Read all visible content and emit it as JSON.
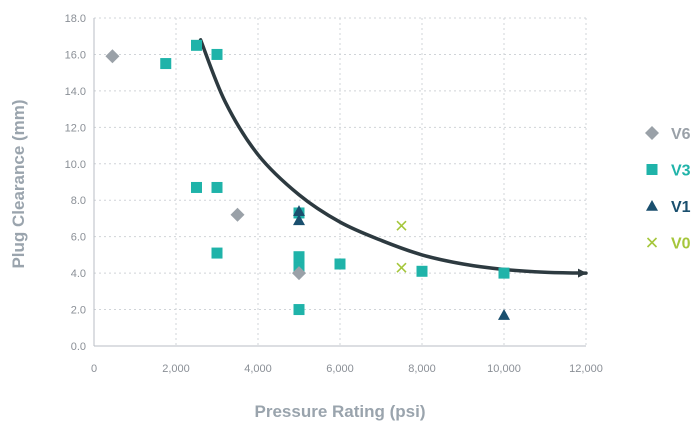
{
  "chart_data": {
    "type": "scatter",
    "xlabel": "Pressure Rating (psi)",
    "ylabel": "Plug Clearance (mm)",
    "xlim": [
      0,
      12000
    ],
    "ylim": [
      0,
      18
    ],
    "x_ticks": [
      {
        "value": 0,
        "label": "0"
      },
      {
        "value": 2000,
        "label": "2,000"
      },
      {
        "value": 4000,
        "label": "4,000"
      },
      {
        "value": 6000,
        "label": "6,000"
      },
      {
        "value": 8000,
        "label": "8,000"
      },
      {
        "value": 10000,
        "label": "10,000"
      },
      {
        "value": 12000,
        "label": "12,000"
      }
    ],
    "y_ticks": [
      {
        "value": 0,
        "label": "0.0"
      },
      {
        "value": 2,
        "label": "2.0"
      },
      {
        "value": 4,
        "label": "4.0"
      },
      {
        "value": 6,
        "label": "6.0"
      },
      {
        "value": 8,
        "label": "8.0"
      },
      {
        "value": 10,
        "label": "10.0"
      },
      {
        "value": 12,
        "label": "12.0"
      },
      {
        "value": 14,
        "label": "14.0"
      },
      {
        "value": 16,
        "label": "16.0"
      },
      {
        "value": 18,
        "label": "18.0"
      }
    ],
    "grid": "dotted",
    "legend_position": "right",
    "series": [
      {
        "name": "V6",
        "marker": "diamond",
        "color": "#9aa1a8",
        "points": [
          [
            450,
            15.9
          ],
          [
            3500,
            7.2
          ],
          [
            5000,
            4.0
          ]
        ]
      },
      {
        "name": "V3",
        "marker": "square",
        "color": "#1fb3a9",
        "points": [
          [
            1750,
            15.5
          ],
          [
            2500,
            16.5
          ],
          [
            3000,
            16.0
          ],
          [
            2500,
            8.7
          ],
          [
            3000,
            8.7
          ],
          [
            3000,
            5.1
          ],
          [
            5000,
            7.3
          ],
          [
            5000,
            4.9
          ],
          [
            5000,
            4.6
          ],
          [
            5000,
            4.3
          ],
          [
            5000,
            2.0
          ],
          [
            6000,
            4.5
          ],
          [
            8000,
            4.1
          ],
          [
            10000,
            4.0
          ]
        ]
      },
      {
        "name": "V1",
        "marker": "triangle",
        "color": "#1a4f6e",
        "points": [
          [
            5000,
            7.4
          ],
          [
            5000,
            6.9
          ],
          [
            10000,
            1.7
          ]
        ]
      },
      {
        "name": "V0",
        "marker": "x",
        "color": "#a5c63b",
        "points": [
          [
            7500,
            6.6
          ],
          [
            7500,
            4.3
          ]
        ]
      }
    ],
    "trend_curve": {
      "color": "#2d3a40",
      "points": [
        [
          2600,
          16.8
        ],
        [
          3200,
          13.4
        ],
        [
          4000,
          10.5
        ],
        [
          5000,
          8.3
        ],
        [
          6000,
          6.8
        ],
        [
          7000,
          5.8
        ],
        [
          8000,
          5.0
        ],
        [
          9000,
          4.5
        ],
        [
          10000,
          4.2
        ],
        [
          11000,
          4.05
        ],
        [
          12000,
          4.0
        ]
      ]
    }
  }
}
